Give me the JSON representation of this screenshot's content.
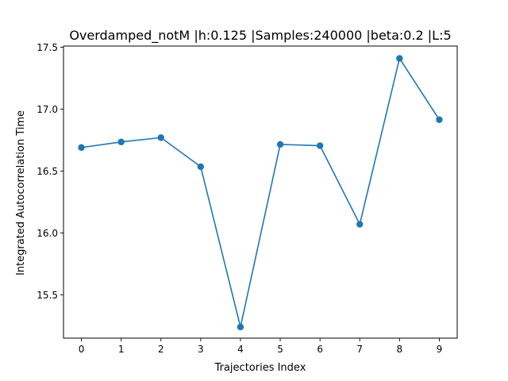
{
  "chart_data": {
    "type": "line",
    "title": "Overdamped_notM |h:0.125 |Samples:240000 |beta:0.2 |L:5",
    "xlabel": "Trajectories Index",
    "ylabel": "Integrated Autocorrelation Time",
    "x": [
      0,
      1,
      2,
      3,
      4,
      5,
      6,
      7,
      8,
      9
    ],
    "y": [
      16.69,
      16.735,
      16.77,
      16.535,
      15.24,
      16.715,
      16.705,
      16.07,
      17.41,
      16.915
    ],
    "xlim": [
      -0.45,
      9.45
    ],
    "ylim": [
      15.15,
      17.51
    ],
    "xticks": [
      0,
      1,
      2,
      3,
      4,
      5,
      6,
      7,
      8,
      9
    ],
    "xtick_labels": [
      "0",
      "1",
      "2",
      "3",
      "4",
      "5",
      "6",
      "7",
      "8",
      "9"
    ],
    "yticks": [
      15.5,
      16.0,
      16.5,
      17.0,
      17.5
    ],
    "ytick_labels": [
      "15.5",
      "16.0",
      "16.5",
      "17.0",
      "17.5"
    ],
    "grid": false,
    "legend": "none",
    "marker": "circle",
    "color": "#1f77b4"
  }
}
